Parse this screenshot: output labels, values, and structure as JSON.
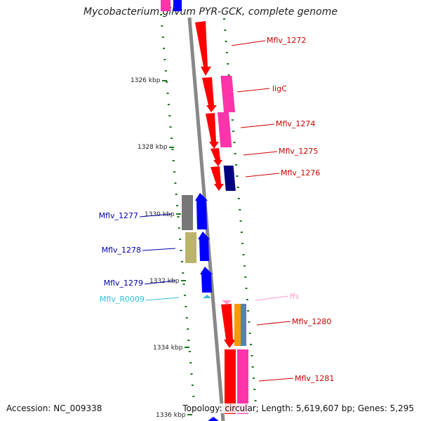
{
  "title": "Mycobacterium gilvum PYR-GCK, complete genome",
  "footer": {
    "accession": "Accession: NC_009338",
    "summary": "Topology: circular; Length: 5,619,607 bp; Genes: 5,295"
  },
  "colors": {
    "backbone": "#888888",
    "tick": "#1a7a1a",
    "fwd_cds": "#ff0000",
    "rev_cds": "#0000ff",
    "pink": "#ff33aa",
    "navy": "#000080",
    "gray": "#777777",
    "khaki": "#bbb46a",
    "orange": "#ff9900",
    "steel": "#4a86b5",
    "cyan": "#33bbdd",
    "light_pink": "#ff99cc"
  },
  "ruler": [
    {
      "label": "1326 kbp"
    },
    {
      "label": "1328 kbp"
    },
    {
      "label": "1330 kbp"
    },
    {
      "label": "1332 kbp"
    },
    {
      "label": "1334 kbp"
    },
    {
      "label": "1336 kbp"
    }
  ],
  "genes": [
    {
      "label": "Mflv_1272",
      "color": "#cc0000"
    },
    {
      "label": "ligC",
      "color": "#cc0000"
    },
    {
      "label": "Mflv_1274",
      "color": "#cc0000"
    },
    {
      "label": "Mflv_1275",
      "color": "#cc0000"
    },
    {
      "label": "Mflv_1276",
      "color": "#cc0000"
    },
    {
      "label": "Mflv_1277",
      "color": "#0000aa"
    },
    {
      "label": "Mflv_1278",
      "color": "#0000aa"
    },
    {
      "label": "Mflv_1279",
      "color": "#0000aa"
    },
    {
      "label": "Mflv_R0009",
      "color": "#33bbdd"
    },
    {
      "label": "ffs",
      "color": "#ff99cc"
    },
    {
      "label": "Mflv_1280",
      "color": "#cc0000"
    },
    {
      "label": "Mflv_1281",
      "color": "#cc0000"
    }
  ]
}
